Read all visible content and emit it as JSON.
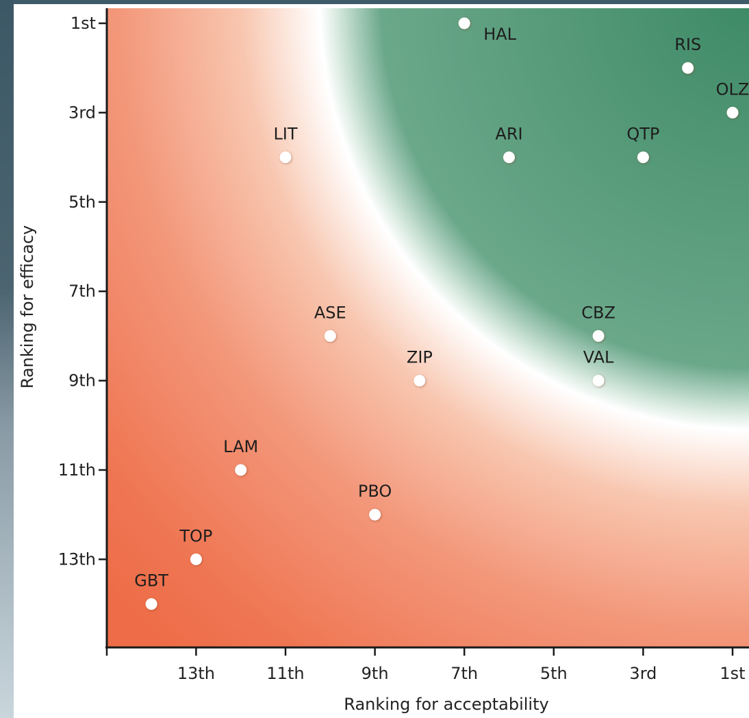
{
  "chart_data": {
    "type": "scatter",
    "xlabel": "Ranking for acceptability",
    "ylabel": "Ranking for efficacy",
    "x_reversed": true,
    "y_reversed": true,
    "xlim": [
      15,
      1
    ],
    "ylim": [
      1,
      15
    ],
    "x_ticks": [
      {
        "value": 13,
        "label": "13th"
      },
      {
        "value": 11,
        "label": "11th"
      },
      {
        "value": 9,
        "label": "9th"
      },
      {
        "value": 7,
        "label": "7th"
      },
      {
        "value": 5,
        "label": "5th"
      },
      {
        "value": 3,
        "label": "3rd"
      },
      {
        "value": 1,
        "label": "1st"
      }
    ],
    "y_ticks": [
      {
        "value": 1,
        "label": "1st"
      },
      {
        "value": 3,
        "label": "3rd"
      },
      {
        "value": 5,
        "label": "5th"
      },
      {
        "value": 7,
        "label": "7th"
      },
      {
        "value": 9,
        "label": "9th"
      },
      {
        "value": 11,
        "label": "11th"
      },
      {
        "value": 13,
        "label": "13th"
      }
    ],
    "points": [
      {
        "label": "HAL",
        "x": 7,
        "y": 1,
        "label_pos": "right"
      },
      {
        "label": "RIS",
        "x": 2,
        "y": 2,
        "label_pos": "top"
      },
      {
        "label": "OLZ",
        "x": 1,
        "y": 3,
        "label_pos": "top"
      },
      {
        "label": "LIT",
        "x": 11,
        "y": 4,
        "label_pos": "top"
      },
      {
        "label": "ARI",
        "x": 6,
        "y": 4,
        "label_pos": "top"
      },
      {
        "label": "QTP",
        "x": 3,
        "y": 4,
        "label_pos": "top"
      },
      {
        "label": "ASE",
        "x": 10,
        "y": 8,
        "label_pos": "top"
      },
      {
        "label": "CBZ",
        "x": 4,
        "y": 8,
        "label_pos": "top"
      },
      {
        "label": "ZIP",
        "x": 8,
        "y": 9,
        "label_pos": "top"
      },
      {
        "label": "VAL",
        "x": 4,
        "y": 9,
        "label_pos": "top"
      },
      {
        "label": "LAM",
        "x": 12,
        "y": 11,
        "label_pos": "top"
      },
      {
        "label": "PBO",
        "x": 9,
        "y": 12,
        "label_pos": "top"
      },
      {
        "label": "TOP",
        "x": 13,
        "y": 13,
        "label_pos": "top"
      },
      {
        "label": "GBT",
        "x": 14,
        "y": 14,
        "label_pos": "top"
      }
    ],
    "colors": {
      "low": "#ef6f4a",
      "mid": "#ffffff",
      "high": "#4a9273",
      "point_fill": "#ffffff"
    },
    "grid": false,
    "legend": "none"
  }
}
